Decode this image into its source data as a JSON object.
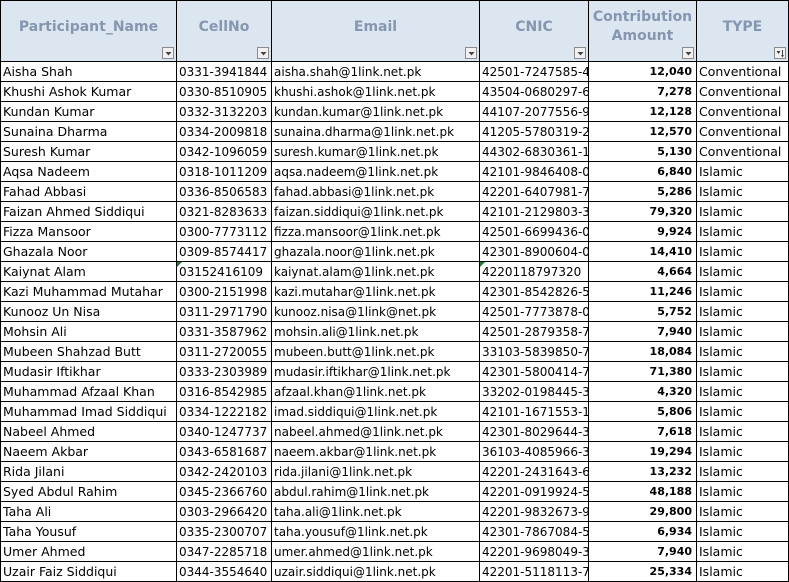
{
  "headers": [
    {
      "label": "Participant_Name",
      "filter": "dropdown"
    },
    {
      "label": "CellNo",
      "filter": "dropdown"
    },
    {
      "label": "Email",
      "filter": "dropdown"
    },
    {
      "label": "CNIC",
      "filter": "dropdown"
    },
    {
      "label": "Contribution\nAmount",
      "filter": "dropdown"
    },
    {
      "label": "TYPE",
      "filter": "sorted"
    }
  ],
  "rows": [
    [
      "Aisha Shah",
      "0331-3941844",
      "aisha.shah@1link.net.pk",
      "42501-7247585-4",
      "12,040",
      "Conventional"
    ],
    [
      "Khushi Ashok Kumar",
      "0330-8510905",
      "khushi.ashok@1link.net.pk",
      "43504-0680297-6",
      "7,278",
      "Conventional"
    ],
    [
      "Kundan Kumar",
      "0332-3132203",
      "kundan.kumar@1link.net.pk",
      "44107-2077556-9",
      "12,128",
      "Conventional"
    ],
    [
      "Sunaina Dharma",
      "0334-2009818",
      "sunaina.dharma@1link.net.pk",
      "41205-5780319-2",
      "12,570",
      "Conventional"
    ],
    [
      "Suresh Kumar",
      "0342-1096059",
      "suresh.kumar@1link.net.pk",
      "44302-6830361-1",
      "5,130",
      "Conventional"
    ],
    [
      "Aqsa Nadeem",
      "0318-1011209",
      "aqsa.nadeem@1link.net.pk",
      "42101-9846408-0",
      "6,840",
      "Islamic"
    ],
    [
      "Fahad Abbasi",
      "0336-8506583",
      "fahad.abbasi@1link.net.pk",
      "42201-6407981-7",
      "5,286",
      "Islamic"
    ],
    [
      "Faizan Ahmed Siddiqui",
      "0321-8283633",
      "faizan.siddiqui@1link.net.pk",
      "42101-2129803-3",
      "79,320",
      "Islamic"
    ],
    [
      "Fizza Mansoor",
      "0300-7773112",
      "fizza.mansoor@1link.net.pk",
      "42501-6699436-0",
      "9,924",
      "Islamic"
    ],
    [
      "Ghazala Noor",
      "0309-8574417",
      "ghazala.noor@1link.net.pk",
      "42301-8900604-0",
      "14,410",
      "Islamic"
    ],
    [
      "Kaiynat Alam",
      "03152416109",
      "kaiynat.alam@1link.net.pk",
      "4220118797320",
      "4,664",
      "Islamic"
    ],
    [
      "Kazi Muhammad Mutahar",
      "0300-2151998",
      "kazi.mutahar@1link.net.pk",
      "42301-8542826-5",
      "11,246",
      "Islamic"
    ],
    [
      "Kunooz Un Nisa",
      "0311-2971790",
      "kunooz.nisa@1link@net.pk",
      "42501-7773878-0",
      "5,752",
      "Islamic"
    ],
    [
      "Mohsin Ali",
      "0331-3587962",
      "mohsin.ali@1link.net.pk",
      "42501-2879358-7",
      "7,940",
      "Islamic"
    ],
    [
      "Mubeen Shahzad Butt",
      "0311-2720055",
      "mubeen.butt@1link.net.pk",
      "33103-5839850-7",
      "18,084",
      "Islamic"
    ],
    [
      "Mudasir Iftikhar",
      "0333-2303989",
      "mudasir.iftikhar@1link.net.pk",
      "42301-5800414-7",
      "71,380",
      "Islamic"
    ],
    [
      "Muhammad Afzaal Khan",
      "0316-8542985",
      "afzaal.khan@1link.net.pk",
      "33202-0198445-3",
      "4,320",
      "Islamic"
    ],
    [
      "Muhammad Imad Siddiqui",
      "0334-1222182",
      "imad.siddiqui@1link.net.pk",
      "42101-1671553-1",
      "5,806",
      "Islamic"
    ],
    [
      "Nabeel Ahmed",
      "0340-1247737",
      "nabeel.ahmed@1link.net.pk",
      "42301-8029644-3",
      "7,618",
      "Islamic"
    ],
    [
      "Naeem Akbar",
      "0343-6581687",
      "naeem.akbar@1link.net.pk",
      "36103-4085966-3",
      "19,294",
      "Islamic"
    ],
    [
      "Rida Jilani",
      "0342-2420103",
      "rida.jilani@1link.net.pk",
      "42201-2431643-6",
      "13,232",
      "Islamic"
    ],
    [
      "Syed Abdul Rahim",
      "0345-2366760",
      "abdul.rahim@1link.net.pk",
      "42201-0919924-5",
      "48,188",
      "Islamic"
    ],
    [
      "Taha Ali",
      "0303-2966420",
      "taha.ali@1link.net.pk",
      "42201-9832673-9",
      "29,800",
      "Islamic"
    ],
    [
      "Taha Yousuf",
      "0335-2300707",
      "taha.yousuf@1link.net.pk",
      "42301-7867084-5",
      "6,934",
      "Islamic"
    ],
    [
      "Umer Ahmed",
      "0347-2285718",
      "umer.ahmed@1link.net.pk",
      "42201-9698049-3",
      "7,940",
      "Islamic"
    ],
    [
      "Uzair Faiz Siddiqui",
      "0344-3554640",
      "uzair.siddiqui@1link.net.pk",
      "42201-5118113-7",
      "25,334",
      "Islamic"
    ]
  ],
  "flagged_cells": [
    [
      10,
      1
    ],
    [
      10,
      3
    ]
  ],
  "colors": {
    "header_bg": "#dce6f1",
    "header_text": "#8496b0",
    "grid": "#000000",
    "error_flag": "#1e7b34"
  },
  "icons": {
    "filter": "dropdown-arrow-icon",
    "sorted_filter": "sort-filter-icon"
  }
}
